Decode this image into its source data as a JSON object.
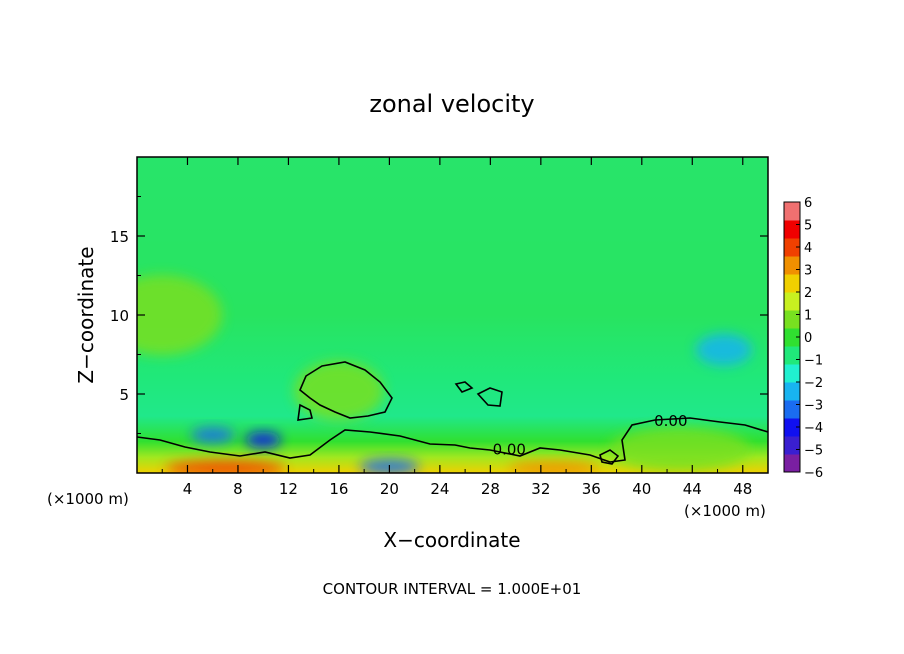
{
  "chart_data": {
    "type": "heatmap",
    "title": "zonal velocity",
    "xlabel": "X−coordinate",
    "ylabel": "Z−coordinate",
    "x_unit_left": "(×1000 m)",
    "x_unit_right": "(×1000 m)",
    "footer": "CONTOUR INTERVAL = 1.000E+01",
    "xlim": [
      0,
      50
    ],
    "ylim": [
      0,
      20
    ],
    "x_ticks": [
      4,
      8,
      12,
      16,
      20,
      24,
      28,
      32,
      36,
      40,
      44,
      48
    ],
    "x_tick_labels": [
      "4",
      "8",
      "12",
      "16",
      "20",
      "24",
      "28",
      "32",
      "36",
      "40",
      "44",
      "48"
    ],
    "y_ticks": [
      5,
      10,
      15
    ],
    "y_tick_labels": [
      "5",
      "10",
      "15"
    ],
    "colorbar": {
      "min": -6,
      "max": 6,
      "tick_values": [
        6,
        5,
        4,
        3,
        2,
        1,
        0,
        -1,
        -2,
        -3,
        -4,
        -5,
        -6
      ],
      "tick_labels": [
        "6",
        "5",
        "4",
        "3",
        "2",
        "1",
        "0",
        "−1",
        "−2",
        "−3",
        "−4",
        "−5",
        "−6"
      ],
      "colors": [
        "#7a1fa2",
        "#3a1fd0",
        "#1010f0",
        "#1a6cf0",
        "#18b4f0",
        "#20f0d0",
        "#20e87a",
        "#30e030",
        "#78e020",
        "#c8f020",
        "#f0d000",
        "#f09000",
        "#f04000",
        "#f00000",
        "#f07070"
      ]
    },
    "contour_labels": [
      {
        "text": "0.00",
        "x": 29.5,
        "z": 1.5
      },
      {
        "text": "0.00",
        "x": 42.3,
        "z": 3.3
      }
    ],
    "regions": [
      {
        "x": 7,
        "z": 0.3,
        "value": 4
      },
      {
        "x": 33,
        "z": 0.3,
        "value": 3
      },
      {
        "x": 20,
        "z": 0.4,
        "value": -3
      },
      {
        "x": 6,
        "z": 2.4,
        "value": -3
      },
      {
        "x": 10,
        "z": 2.1,
        "value": -4
      },
      {
        "x": 46.5,
        "z": 7.8,
        "value": -2.5
      },
      {
        "x": 16,
        "z": 5.2,
        "value": 1
      },
      {
        "x": 43,
        "z": 1.5,
        "value": 1
      },
      {
        "x": 2,
        "z": 10,
        "value": 0.8
      }
    ]
  }
}
